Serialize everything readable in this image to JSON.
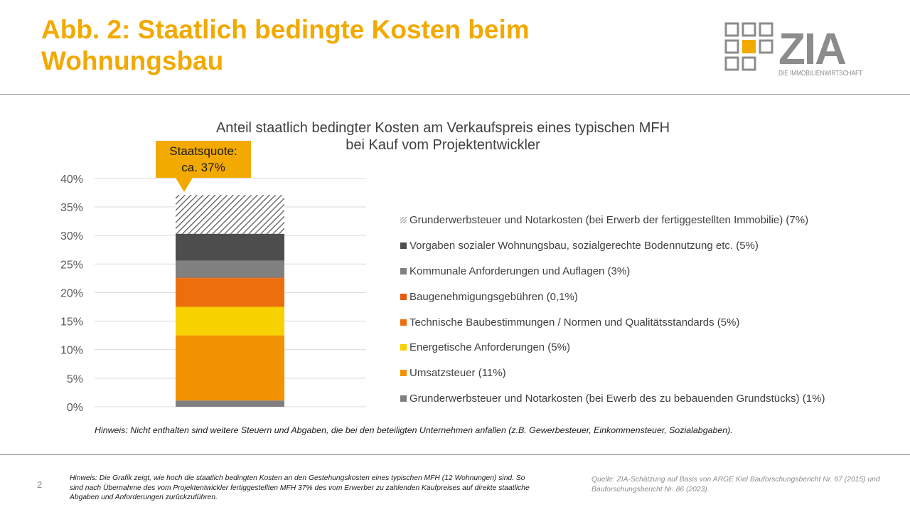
{
  "header": {
    "title": "Abb. 2: Staatlich bedingte Kosten beim Wohnungsbau",
    "logo": {
      "brand": "ZIA",
      "tagline": "DIE IMMOBILIENWIRTSCHAFT",
      "icon": "grid-squares-icon"
    }
  },
  "callout": {
    "line1": "Staatsquote:",
    "line2": "ca. 37%"
  },
  "chart_data": {
    "type": "bar",
    "stacked": true,
    "title": "Anteil staatlich bedingter Kosten am Verkaufspreis eines typischen MFH bei Kauf vom Projektentwickler",
    "title_lines": [
      "Anteil staatlich bedingter Kosten am Verkaufspreis eines typischen MFH",
      "bei Kauf vom Projektentwickler"
    ],
    "categories": [
      ""
    ],
    "ylim": [
      0,
      40
    ],
    "yticks": [
      0,
      5,
      10,
      15,
      20,
      25,
      30,
      35,
      40
    ],
    "ytick_labels": [
      "0%",
      "5%",
      "10%",
      "15%",
      "20%",
      "25%",
      "30%",
      "35%",
      "40%"
    ],
    "grid": true,
    "legend_position": "right",
    "series": [
      {
        "name": "Grunderwerbsteuer und Notarkosten (bei Ewerb des zu bebauenden Grundstücks) (1%)",
        "values": [
          1.1
        ],
        "color": "#808080",
        "pattern": "solid"
      },
      {
        "name": "Umsatzsteuer (11%)",
        "values": [
          11.4
        ],
        "color": "#f39200",
        "pattern": "solid"
      },
      {
        "name": "Energetische Anforderungen (5%)",
        "values": [
          5.0
        ],
        "color": "#f7d100",
        "pattern": "solid"
      },
      {
        "name": "Technische Baubestimmungen / Normen und Qualitätsstandards (5%)",
        "values": [
          5.0
        ],
        "color": "#ec6f0e",
        "pattern": "solid"
      },
      {
        "name": "Baugenehmigungsgebühren (0,1%)",
        "values": [
          0.1
        ],
        "color": "#e8590c",
        "pattern": "solid"
      },
      {
        "name": "Kommunale Anforderungen und Auflagen (3%)",
        "values": [
          3.0
        ],
        "color": "#808080",
        "pattern": "solid"
      },
      {
        "name": "Vorgaben sozialer Wohnungsbau, sozialgerechte Bodennutzung etc. (5%)",
        "values": [
          4.7
        ],
        "color": "#4d4d4d",
        "pattern": "solid"
      },
      {
        "name": "Grunderwerbsteuer und Notarkosten (bei Erwerb der fertiggestellten Immobilie) (7%)",
        "values": [
          6.8
        ],
        "color": "#7f7f7f",
        "pattern": "hatched"
      }
    ]
  },
  "note": "Hinweis:  Nicht enthalten sind weitere Steuern und Abgaben, die bei den beteiligten Unternehmen anfallen (z.B. Gewerbesteuer, Einkommensteuer, Sozialabgaben).",
  "footer": {
    "page_number": "2",
    "footnote": "Hinweis: Die Grafik zeigt, wie hoch die staatlich bedingten Kosten an den Gestehungskosten eines typischen MFH (12 Wohnungen) sind. So sind nach Übernahme des vom Projektentwickler fertiggestellten MFH 37% des vom Erwerber zu zahlenden Kaufpreises auf direkte staatliche Abgaben und Anforderungen zurückzuführen.",
    "source": "Quelle: ZIA-Schätzung auf Basis von ARGE Kiel Bauforschungsbericht Nr. 67 (2015) und Bauforschungsbericht Nr. 86 (2023)."
  }
}
